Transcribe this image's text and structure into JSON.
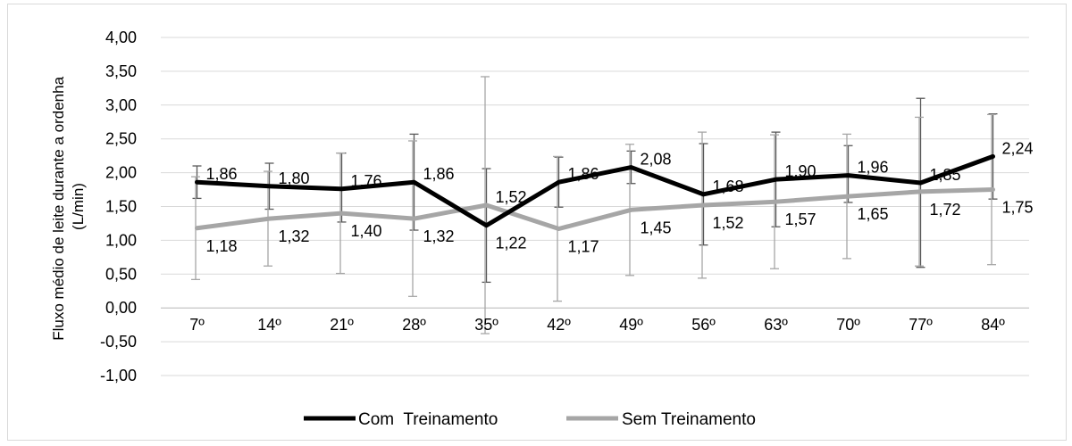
{
  "chart_data": {
    "type": "line",
    "ylabel_line1": "Fluxo médio de leite durante a ordenha",
    "ylabel_line2": "(L/min)",
    "categories": [
      "7º",
      "14º",
      "21º",
      "28º",
      "35º",
      "42º",
      "49º",
      "56º",
      "63º",
      "70º",
      "77º",
      "84º"
    ],
    "ylim": [
      -1.0,
      4.0
    ],
    "yticks": [
      "-1,00",
      "-0,50",
      "0,00",
      "0,50",
      "1,00",
      "1,50",
      "2,00",
      "2,50",
      "3,00",
      "3,50",
      "4,00"
    ],
    "ytick_values": [
      -1.0,
      -0.5,
      0.0,
      0.5,
      1.0,
      1.5,
      2.0,
      2.5,
      3.0,
      3.5,
      4.0
    ],
    "grid": true,
    "legend_position": "bottom",
    "series": [
      {
        "name": "Com  Treinamento",
        "color": "#000000",
        "values": [
          1.86,
          1.8,
          1.76,
          1.86,
          1.22,
          1.86,
          2.08,
          1.68,
          1.9,
          1.96,
          1.85,
          2.24
        ],
        "labels": [
          "1,86",
          "1,80",
          "1,76",
          "1,86",
          "1,22",
          "1,86",
          "2,08",
          "1,68",
          "1,90",
          "1,96",
          "1,85",
          "2,24"
        ],
        "error_low": [
          1.62,
          1.46,
          1.27,
          1.15,
          0.38,
          1.49,
          1.84,
          0.93,
          1.2,
          1.56,
          0.6,
          1.61
        ],
        "error_high": [
          2.1,
          2.14,
          2.29,
          2.57,
          2.06,
          2.23,
          2.32,
          2.43,
          2.6,
          2.4,
          3.1,
          2.87
        ]
      },
      {
        "name": "Sem Treinamento",
        "color": "#a6a6a6",
        "values": [
          1.18,
          1.32,
          1.4,
          1.32,
          1.52,
          1.17,
          1.45,
          1.52,
          1.57,
          1.65,
          1.72,
          1.75
        ],
        "labels": [
          "1,18",
          "1,32",
          "1,40",
          "1,32",
          "1,52",
          "1,17",
          "1,45",
          "1,52",
          "1,57",
          "1,65",
          "1,72",
          "1,75"
        ],
        "error_low": [
          0.42,
          0.62,
          0.51,
          0.17,
          -0.38,
          0.1,
          0.48,
          0.44,
          0.58,
          0.73,
          0.62,
          0.64
        ],
        "error_high": [
          1.94,
          2.02,
          2.29,
          2.47,
          3.42,
          2.24,
          2.42,
          2.6,
          2.56,
          2.57,
          2.82,
          2.86
        ]
      }
    ]
  }
}
